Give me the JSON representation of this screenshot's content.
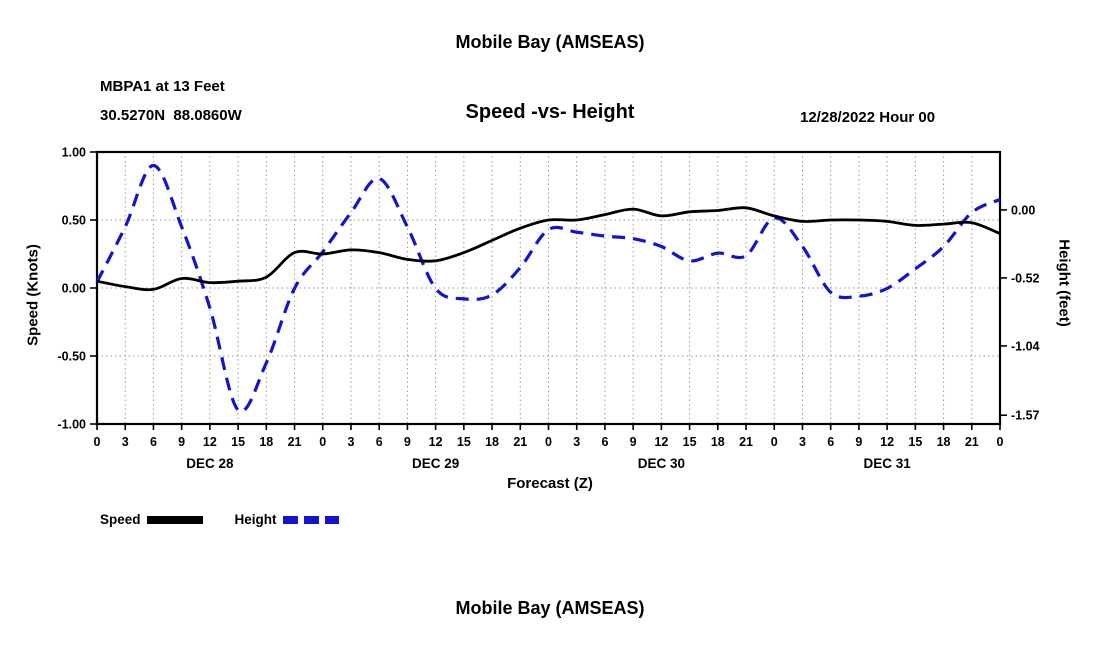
{
  "page": {
    "title_top": "Mobile Bay (AMSEAS)",
    "title_bottom": "Mobile Bay (AMSEAS)"
  },
  "header": {
    "station": "MBPA1 at 13 Feet",
    "coordinates": "30.5270N  88.0860W",
    "subtitle": "Speed -vs- Height",
    "run_time": "12/28/2022 Hour 00"
  },
  "axes": {
    "y_left_label": "Speed (Knots)",
    "y_right_label": "Height (feet)",
    "x_label": "Forecast (Z)"
  },
  "legend": {
    "items": [
      {
        "label": "Speed",
        "color": "#000000",
        "dashed": false
      },
      {
        "label": "Height",
        "color": "#1414cc",
        "dashed": true
      }
    ]
  },
  "chart_data": {
    "type": "line",
    "title": "Speed -vs- Height",
    "station": "MBPA1 at 13 Feet",
    "forecast_start": "12/28/2022 Hour 00",
    "x_label": "Forecast (Z)",
    "x_hours": [
      0,
      3,
      6,
      9,
      12,
      15,
      18,
      21,
      24,
      27,
      30,
      33,
      36,
      39,
      42,
      45,
      48,
      51,
      54,
      57,
      60,
      63,
      66,
      69,
      72,
      75,
      78,
      81,
      84,
      87,
      90,
      93,
      96
    ],
    "x_tick_labels": [
      "0",
      "3",
      "6",
      "9",
      "12",
      "15",
      "18",
      "21",
      "0",
      "3",
      "6",
      "9",
      "12",
      "15",
      "18",
      "21",
      "0",
      "3",
      "6",
      "9",
      "12",
      "15",
      "18",
      "21",
      "0",
      "3",
      "6",
      "9",
      "12",
      "15",
      "18",
      "21",
      "0"
    ],
    "day_labels": [
      {
        "label": "DEC 28",
        "center_hour": 12
      },
      {
        "label": "DEC 29",
        "center_hour": 36
      },
      {
        "label": "DEC 30",
        "center_hour": 60
      },
      {
        "label": "DEC 31",
        "center_hour": 84
      }
    ],
    "y_left": {
      "label": "Speed (Knots)",
      "ticks": [
        "1.00",
        "0.50",
        "0.00",
        "-0.50",
        "-1.00"
      ],
      "range": [
        -1.0,
        1.0
      ]
    },
    "y_right": {
      "label": "Height (feet)",
      "ticks": [
        {
          "label": "0.00",
          "feet": 0.0
        },
        {
          "label": "-0.52",
          "feet": -0.52
        },
        {
          "label": "-1.04",
          "feet": -1.04
        },
        {
          "label": "-1.57",
          "feet": -1.57
        }
      ],
      "speed_at_zero_feet": 0.574,
      "knots_per_foot": 0.9615
    },
    "grid": true,
    "legend_position": "bottom-left",
    "series": [
      {
        "name": "Speed",
        "unit": "knots",
        "axis": "left",
        "color": "#000000",
        "style": "solid",
        "values": [
          0.05,
          0.01,
          -0.01,
          0.07,
          0.04,
          0.05,
          0.08,
          0.26,
          0.25,
          0.28,
          0.26,
          0.21,
          0.2,
          0.26,
          0.35,
          0.44,
          0.5,
          0.5,
          0.54,
          0.58,
          0.53,
          0.56,
          0.57,
          0.59,
          0.53,
          0.49,
          0.5,
          0.5,
          0.49,
          0.46,
          0.47,
          0.48,
          0.4
        ]
      },
      {
        "name": "Height",
        "unit": "feet",
        "axis": "right",
        "color": "#1414cc",
        "style": "dashed",
        "values": [
          -0.55,
          -0.13,
          0.34,
          -0.13,
          -0.75,
          -1.53,
          -1.17,
          -0.6,
          -0.32,
          -0.02,
          0.24,
          -0.13,
          -0.6,
          -0.68,
          -0.65,
          -0.44,
          -0.15,
          -0.17,
          -0.2,
          -0.22,
          -0.28,
          -0.39,
          -0.33,
          -0.35,
          -0.06,
          -0.28,
          -0.63,
          -0.66,
          -0.6,
          -0.45,
          -0.28,
          -0.02,
          0.08
        ]
      }
    ]
  }
}
